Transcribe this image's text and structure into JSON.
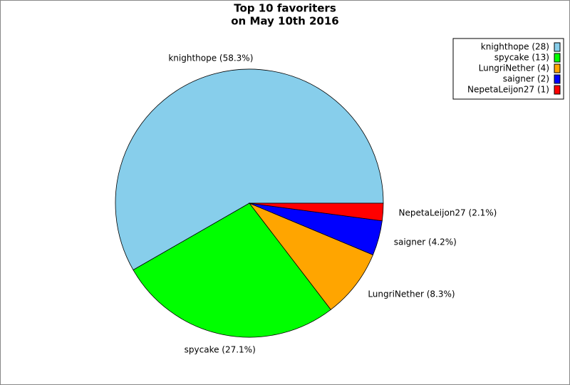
{
  "chart_data": {
    "type": "pie",
    "title": "Top 10 favoriters",
    "subtitle": "on May 10th 2016",
    "categories": [
      "knighthope (28)",
      "spycake (13)",
      "LungriNether (4)",
      "saigner (2)",
      "NepetaLeijon27 (1)"
    ],
    "values": [
      58.3,
      27.1,
      8.3,
      4.2,
      2.1
    ],
    "value_labels": [
      "knighthope (58.3%)",
      "spycake (27.1%)",
      "LungriNether (8.3%)",
      "saigner (4.2%)",
      "NepetaLeijon27 (2.1%)"
    ],
    "colors": [
      "#87ceeb",
      "#00ff00",
      "#ffa500",
      "#0000ff",
      "#ff0000"
    ],
    "legend": "upper right"
  }
}
